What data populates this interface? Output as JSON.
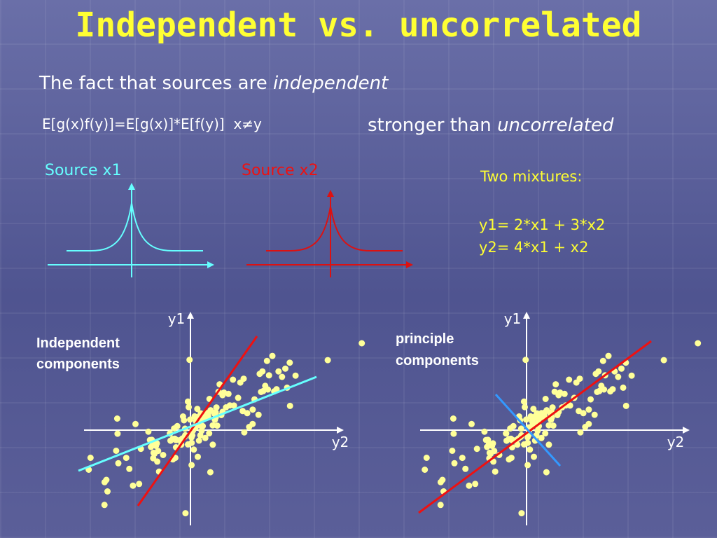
{
  "title": "Independent vs. uncorrelated",
  "statement": {
    "prefix": "The fact that sources are",
    "emphasis": "independent"
  },
  "equation": "E[g(x)f(y)]=E[g(x)]*E[f(y)]  x≠y",
  "comparison": {
    "prefix": "stronger than",
    "emphasis": "uncorrelated"
  },
  "sources": [
    {
      "label": "Source x1"
    },
    {
      "label": "Source x2"
    }
  ],
  "mixtures": {
    "heading": "Two mixtures:",
    "equations": [
      "y1= 2*x1 + 3*x2",
      "y2= 4*x1 + x2"
    ]
  },
  "plots": [
    {
      "caption": [
        "Independent",
        "components"
      ],
      "y_label": "y1",
      "x_label": "y2"
    },
    {
      "caption": [
        "principle",
        "components"
      ],
      "y_label": "y1",
      "x_label": "y2"
    }
  ]
}
